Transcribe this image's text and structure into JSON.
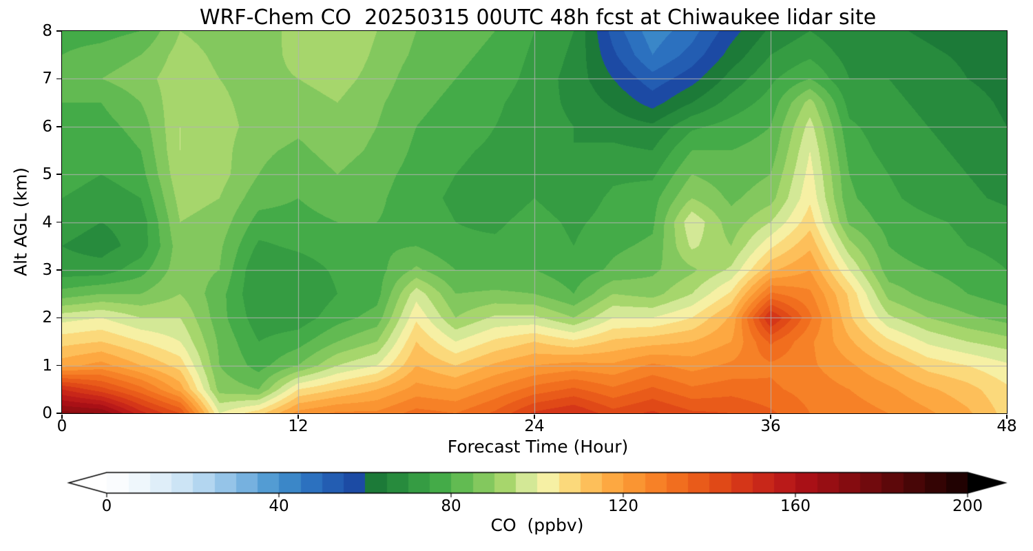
{
  "title": "WRF-Chem CO  20250315 00UTC 48h fcst at Chiwaukee lidar site",
  "chart_data": {
    "type": "heatmap",
    "title": "WRF-Chem CO  20250315 00UTC 48h fcst at Chiwaukee lidar site",
    "xlabel": "Forecast Time (Hour)",
    "ylabel": "Alt AGL (km)",
    "units": "ppbv",
    "xlim": [
      0,
      48
    ],
    "ylim": [
      0,
      8
    ],
    "x_ticks": [
      0,
      12,
      24,
      36,
      48
    ],
    "y_ticks": [
      0,
      1,
      2,
      3,
      4,
      5,
      6,
      7,
      8
    ],
    "grid": {
      "x_lines": [
        12,
        24,
        36
      ],
      "y_lines": [
        1,
        2,
        3,
        4,
        5,
        6,
        7
      ],
      "color": "#b2b2b2"
    },
    "x_hours": [
      0,
      2,
      4,
      6,
      8,
      10,
      12,
      14,
      16,
      18,
      20,
      22,
      24,
      26,
      28,
      30,
      32,
      34,
      36,
      38,
      40,
      42,
      44,
      46,
      48
    ],
    "y_km": [
      0,
      0.5,
      1,
      1.5,
      2,
      2.5,
      3,
      3.5,
      4,
      4.5,
      5,
      5.5,
      6,
      6.5,
      7,
      7.5,
      8
    ],
    "values_note": "values_by_hour[i][j] = CO (ppbv) at x_hours[i], y_km[j]",
    "values_by_hour": [
      [
        172,
        150,
        118,
        108,
        98,
        82,
        72,
        70,
        72,
        75,
        78,
        78,
        80,
        80,
        82,
        80,
        78
      ],
      [
        170,
        142,
        122,
        110,
        100,
        85,
        72,
        68,
        70,
        72,
        75,
        76,
        78,
        80,
        85,
        82,
        78
      ],
      [
        152,
        132,
        115,
        105,
        95,
        85,
        78,
        72,
        72,
        75,
        78,
        80,
        82,
        85,
        88,
        85,
        80
      ],
      [
        140,
        118,
        108,
        100,
        95,
        90,
        88,
        88,
        90,
        92,
        94,
        95,
        95,
        94,
        93,
        92,
        90
      ],
      [
        100,
        88,
        85,
        84,
        82,
        82,
        85,
        86,
        88,
        90,
        92,
        92,
        92,
        91,
        90,
        89,
        88
      ],
      [
        108,
        85,
        78,
        75,
        72,
        70,
        70,
        74,
        78,
        82,
        85,
        86,
        88,
        88,
        88,
        87,
        86
      ],
      [
        122,
        105,
        85,
        78,
        72,
        70,
        72,
        76,
        78,
        80,
        82,
        84,
        86,
        88,
        90,
        92,
        93
      ],
      [
        126,
        110,
        95,
        85,
        78,
        75,
        76,
        78,
        80,
        83,
        85,
        87,
        88,
        90,
        92,
        94,
        95
      ],
      [
        126,
        115,
        100,
        90,
        82,
        78,
        78,
        79,
        80,
        81,
        82,
        84,
        85,
        86,
        88,
        89,
        90
      ],
      [
        132,
        122,
        115,
        110,
        104,
        98,
        86,
        80,
        78,
        77,
        78,
        79,
        80,
        81,
        82,
        84,
        85
      ],
      [
        130,
        120,
        110,
        100,
        90,
        85,
        80,
        76,
        75,
        74,
        75,
        76,
        78,
        79,
        80,
        81,
        82
      ],
      [
        136,
        126,
        116,
        106,
        96,
        86,
        80,
        76,
        74,
        72,
        73,
        74,
        75,
        76,
        78,
        79,
        80
      ],
      [
        146,
        132,
        120,
        110,
        96,
        85,
        80,
        78,
        77,
        75,
        73,
        72,
        72,
        72,
        73,
        74,
        75
      ],
      [
        150,
        136,
        122,
        106,
        90,
        80,
        77,
        75,
        74,
        72,
        70,
        70,
        70,
        69,
        68,
        69,
        70
      ],
      [
        142,
        131,
        121,
        111,
        100,
        90,
        81,
        79,
        77,
        76,
        74,
        71,
        68,
        64,
        60,
        56,
        53
      ],
      [
        146,
        136,
        126,
        113,
        100,
        88,
        84,
        81,
        79,
        78,
        74,
        70,
        66,
        58,
        52,
        45,
        42
      ],
      [
        141,
        131,
        123,
        115,
        105,
        95,
        89,
        96,
        99,
        90,
        85,
        80,
        74,
        65,
        58,
        52,
        48
      ],
      [
        140,
        133,
        126,
        120,
        116,
        106,
        96,
        90,
        87,
        84,
        82,
        80,
        77,
        72,
        67,
        62,
        58
      ],
      [
        136,
        131,
        129,
        136,
        151,
        131,
        114,
        104,
        95,
        88,
        85,
        82,
        80,
        77,
        74,
        70,
        66
      ],
      [
        130,
        128,
        126,
        126,
        131,
        126,
        120,
        114,
        108,
        104,
        102,
        100,
        97,
        92,
        80,
        74,
        70
      ],
      [
        128,
        125,
        121,
        116,
        111,
        109,
        100,
        92,
        84,
        81,
        80,
        78,
        76,
        73,
        70,
        68,
        66
      ],
      [
        125,
        121,
        115,
        106,
        96,
        88,
        82,
        80,
        78,
        76,
        75,
        73,
        72,
        71,
        70,
        68,
        66
      ],
      [
        121,
        116,
        108,
        99,
        90,
        83,
        80,
        77,
        76,
        73,
        72,
        71,
        70,
        69,
        68,
        66,
        64
      ],
      [
        116,
        112,
        105,
        95,
        86,
        80,
        78,
        75,
        74,
        71,
        70,
        69,
        68,
        67,
        65,
        64,
        62
      ],
      [
        108,
        106,
        101,
        92,
        83,
        77,
        75,
        73,
        72,
        69,
        68,
        66,
        65,
        64,
        63,
        62,
        61
      ]
    ],
    "colorbar": {
      "label": "CO  (ppbv)",
      "ticks": [
        0,
        40,
        80,
        120,
        160,
        200
      ],
      "range": [
        0,
        200
      ],
      "extend": "both",
      "level_step": 5,
      "colormap_stops": [
        [
          -10,
          "#ffffff"
        ],
        [
          0,
          "#ffffff"
        ],
        [
          8,
          "#eef6fc"
        ],
        [
          16,
          "#d4e8f7"
        ],
        [
          24,
          "#abd2ee"
        ],
        [
          32,
          "#79b3e0"
        ],
        [
          40,
          "#4292cd"
        ],
        [
          48,
          "#2a6fbe"
        ],
        [
          56,
          "#1d4fa8"
        ],
        [
          59,
          "#1a46a0"
        ],
        [
          62,
          "#1b7837"
        ],
        [
          70,
          "#2d9440"
        ],
        [
          78,
          "#46ad48"
        ],
        [
          85,
          "#72c258"
        ],
        [
          92,
          "#a2d468"
        ],
        [
          97,
          "#cfe794"
        ],
        [
          102,
          "#f5f2a8"
        ],
        [
          107,
          "#fbdc7e"
        ],
        [
          112,
          "#fdc15c"
        ],
        [
          118,
          "#fda63f"
        ],
        [
          125,
          "#f98b2b"
        ],
        [
          132,
          "#f2701f"
        ],
        [
          140,
          "#e55217"
        ],
        [
          148,
          "#d43418"
        ],
        [
          155,
          "#c21f1a"
        ],
        [
          162,
          "#ab1016"
        ],
        [
          172,
          "#870c10"
        ],
        [
          182,
          "#5f080a"
        ],
        [
          192,
          "#360404"
        ],
        [
          202,
          "#100101"
        ],
        [
          215,
          "#000000"
        ]
      ]
    }
  }
}
